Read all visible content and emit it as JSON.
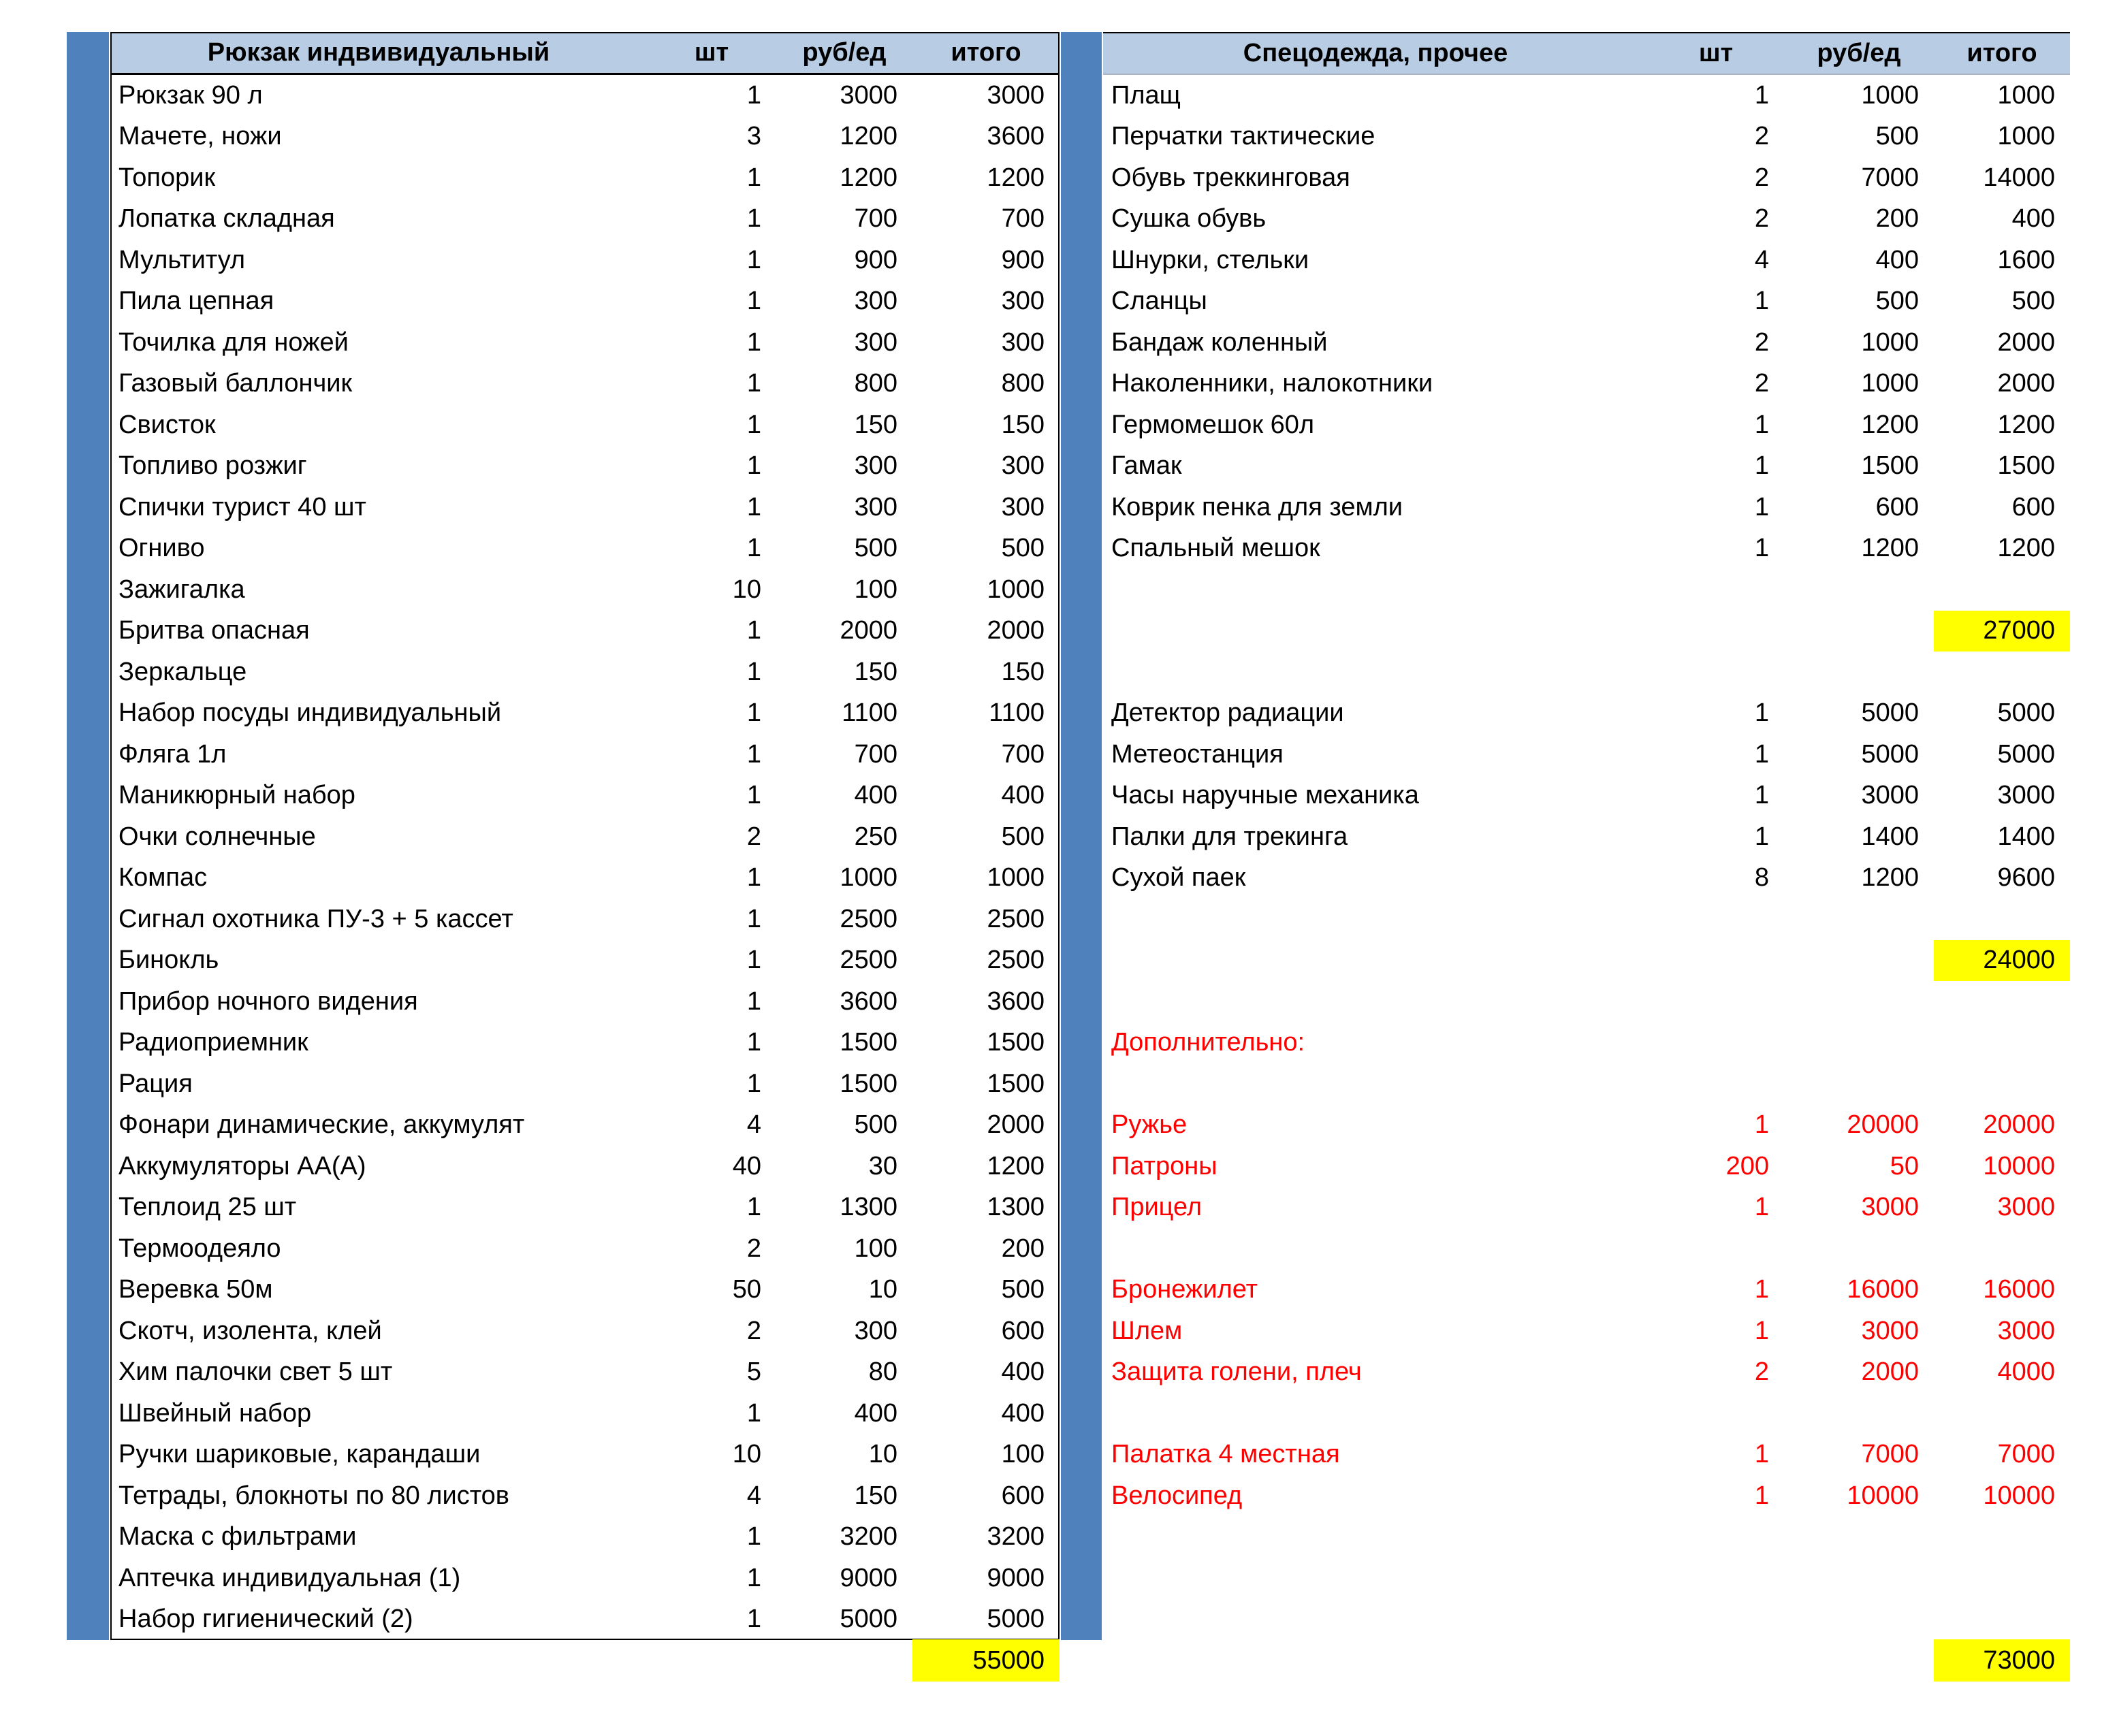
{
  "colors": {
    "accent_strip": "#4f81bd",
    "header_bg": "#b8cce4",
    "highlight": "#ffff00",
    "red_text": "#ff0000",
    "border": "#000000",
    "text": "#000000"
  },
  "columns": {
    "qty": "шт",
    "price": "руб/ед",
    "total": "итого"
  },
  "left_table": {
    "title": "Рюкзак индвивидуальный",
    "grand_total": "55000",
    "rows": [
      {
        "name": "Рюкзак 90 л",
        "qty": "1",
        "price": "3000",
        "total": "3000"
      },
      {
        "name": "Мачете, ножи",
        "qty": "3",
        "price": "1200",
        "total": "3600"
      },
      {
        "name": "Топорик",
        "qty": "1",
        "price": "1200",
        "total": "1200"
      },
      {
        "name": "Лопатка складная",
        "qty": "1",
        "price": "700",
        "total": "700"
      },
      {
        "name": "Мультитул",
        "qty": "1",
        "price": "900",
        "total": "900"
      },
      {
        "name": "Пила цепная",
        "qty": "1",
        "price": "300",
        "total": "300"
      },
      {
        "name": "Точилка для ножей",
        "qty": "1",
        "price": "300",
        "total": "300"
      },
      {
        "name": "Газовый баллончик",
        "qty": "1",
        "price": "800",
        "total": "800"
      },
      {
        "name": "Свисток",
        "qty": "1",
        "price": "150",
        "total": "150"
      },
      {
        "name": "Топливо розжиг",
        "qty": "1",
        "price": "300",
        "total": "300"
      },
      {
        "name": "Спички турист 40 шт",
        "qty": "1",
        "price": "300",
        "total": "300"
      },
      {
        "name": "Огниво",
        "qty": "1",
        "price": "500",
        "total": "500"
      },
      {
        "name": "Зажигалка",
        "qty": "10",
        "price": "100",
        "total": "1000"
      },
      {
        "name": "Бритва опасная",
        "qty": "1",
        "price": "2000",
        "total": "2000"
      },
      {
        "name": "Зеркальце",
        "qty": "1",
        "price": "150",
        "total": "150"
      },
      {
        "name": "Набор посуды индивидуальный",
        "qty": "1",
        "price": "1100",
        "total": "1100"
      },
      {
        "name": "Фляга 1л",
        "qty": "1",
        "price": "700",
        "total": "700"
      },
      {
        "name": "Маникюрный набор",
        "qty": "1",
        "price": "400",
        "total": "400"
      },
      {
        "name": "Очки солнечные",
        "qty": "2",
        "price": "250",
        "total": "500"
      },
      {
        "name": "Компас",
        "qty": "1",
        "price": "1000",
        "total": "1000"
      },
      {
        "name": "Сигнал охотника ПУ-3 + 5 кассет",
        "qty": "1",
        "price": "2500",
        "total": "2500"
      },
      {
        "name": "Бинокль",
        "qty": "1",
        "price": "2500",
        "total": "2500"
      },
      {
        "name": "Прибор ночного видения",
        "qty": "1",
        "price": "3600",
        "total": "3600"
      },
      {
        "name": "Радиоприемник",
        "qty": "1",
        "price": "1500",
        "total": "1500"
      },
      {
        "name": "Рация",
        "qty": "1",
        "price": "1500",
        "total": "1500"
      },
      {
        "name": "Фонари динамические, аккумулят",
        "qty": "4",
        "price": "500",
        "total": "2000"
      },
      {
        "name": "Аккумуляторы АА(А)",
        "qty": "40",
        "price": "30",
        "total": "1200"
      },
      {
        "name": "Теплоид 25 шт",
        "qty": "1",
        "price": "1300",
        "total": "1300"
      },
      {
        "name": "Термоодеяло",
        "qty": "2",
        "price": "100",
        "total": "200"
      },
      {
        "name": "Веревка 50м",
        "qty": "50",
        "price": "10",
        "total": "500"
      },
      {
        "name": "Скотч, изолента, клей",
        "qty": "2",
        "price": "300",
        "total": "600"
      },
      {
        "name": "Хим палочки свет 5 шт",
        "qty": "5",
        "price": "80",
        "total": "400"
      },
      {
        "name": "Швейный набор",
        "qty": "1",
        "price": "400",
        "total": "400"
      },
      {
        "name": "Ручки шариковые, карандаши",
        "qty": "10",
        "price": "10",
        "total": "100"
      },
      {
        "name": "Тетрады, блокноты по 80 листов",
        "qty": "4",
        "price": "150",
        "total": "600"
      },
      {
        "name": "Маска с фильтрами",
        "qty": "1",
        "price": "3200",
        "total": "3200"
      },
      {
        "name": "Аптечка индивидуальная (1)",
        "qty": "1",
        "price": "9000",
        "total": "9000"
      },
      {
        "name": "Набор гигиенический (2)",
        "qty": "1",
        "price": "5000",
        "total": "5000"
      }
    ]
  },
  "right_table": {
    "title": "Спецодежда, прочее",
    "grand_total": "73000",
    "rows": [
      {
        "name": "Плащ",
        "qty": "1",
        "price": "1000",
        "total": "1000"
      },
      {
        "name": "Перчатки тактические",
        "qty": "2",
        "price": "500",
        "total": "1000"
      },
      {
        "name": "Обувь треккинговая",
        "qty": "2",
        "price": "7000",
        "total": "14000"
      },
      {
        "name": "Сушка обувь",
        "qty": "2",
        "price": "200",
        "total": "400"
      },
      {
        "name": "Шнурки, стельки",
        "qty": "4",
        "price": "400",
        "total": "1600"
      },
      {
        "name": "Сланцы",
        "qty": "1",
        "price": "500",
        "total": "500"
      },
      {
        "name": "Бандаж коленный",
        "qty": "2",
        "price": "1000",
        "total": "2000"
      },
      {
        "name": "Наколенники, налокотники",
        "qty": "2",
        "price": "1000",
        "total": "2000"
      },
      {
        "name": "Гермомешок 60л",
        "qty": "1",
        "price": "1200",
        "total": "1200"
      },
      {
        "name": "Гамак",
        "qty": "1",
        "price": "1500",
        "total": "1500"
      },
      {
        "name": "Коврик пенка для земли",
        "qty": "1",
        "price": "600",
        "total": "600"
      },
      {
        "name": "Спальный мешок",
        "qty": "1",
        "price": "1200",
        "total": "1200"
      },
      {
        "type": "blank"
      },
      {
        "type": "subtotal",
        "total": "27000"
      },
      {
        "type": "blank"
      },
      {
        "name": "Детектор радиации",
        "qty": "1",
        "price": "5000",
        "total": "5000"
      },
      {
        "name": "Метеостанция",
        "qty": "1",
        "price": "5000",
        "total": "5000"
      },
      {
        "name": "Часы наручные механика",
        "qty": "1",
        "price": "3000",
        "total": "3000"
      },
      {
        "name": "Палки для трекинга",
        "qty": "1",
        "price": "1400",
        "total": "1400"
      },
      {
        "name": "Сухой паек",
        "qty": "8",
        "price": "1200",
        "total": "9600"
      },
      {
        "type": "blank"
      },
      {
        "type": "subtotal",
        "total": "24000"
      },
      {
        "type": "blank"
      },
      {
        "type": "label",
        "name": "Дополнительно:",
        "red": true
      },
      {
        "type": "blank"
      },
      {
        "name": "Ружье",
        "qty": "1",
        "price": "20000",
        "total": "20000",
        "red": true
      },
      {
        "name": "Патроны",
        "qty": "200",
        "price": "50",
        "total": "10000",
        "red": true
      },
      {
        "name": "Прицел",
        "qty": "1",
        "price": "3000",
        "total": "3000",
        "red": true
      },
      {
        "type": "blank"
      },
      {
        "name": "Бронежилет",
        "qty": "1",
        "price": "16000",
        "total": "16000",
        "red": true
      },
      {
        "name": "Шлем",
        "qty": "1",
        "price": "3000",
        "total": "3000",
        "red": true
      },
      {
        "name": "Защита голени, плеч",
        "qty": "2",
        "price": "2000",
        "total": "4000",
        "red": true
      },
      {
        "type": "blank"
      },
      {
        "name": "Палатка 4 местная",
        "qty": "1",
        "price": "7000",
        "total": "7000",
        "red": true
      },
      {
        "name": "Велосипед",
        "qty": "1",
        "price": "10000",
        "total": "10000",
        "red": true
      },
      {
        "type": "blank"
      },
      {
        "type": "blank"
      },
      {
        "type": "blank"
      }
    ]
  }
}
